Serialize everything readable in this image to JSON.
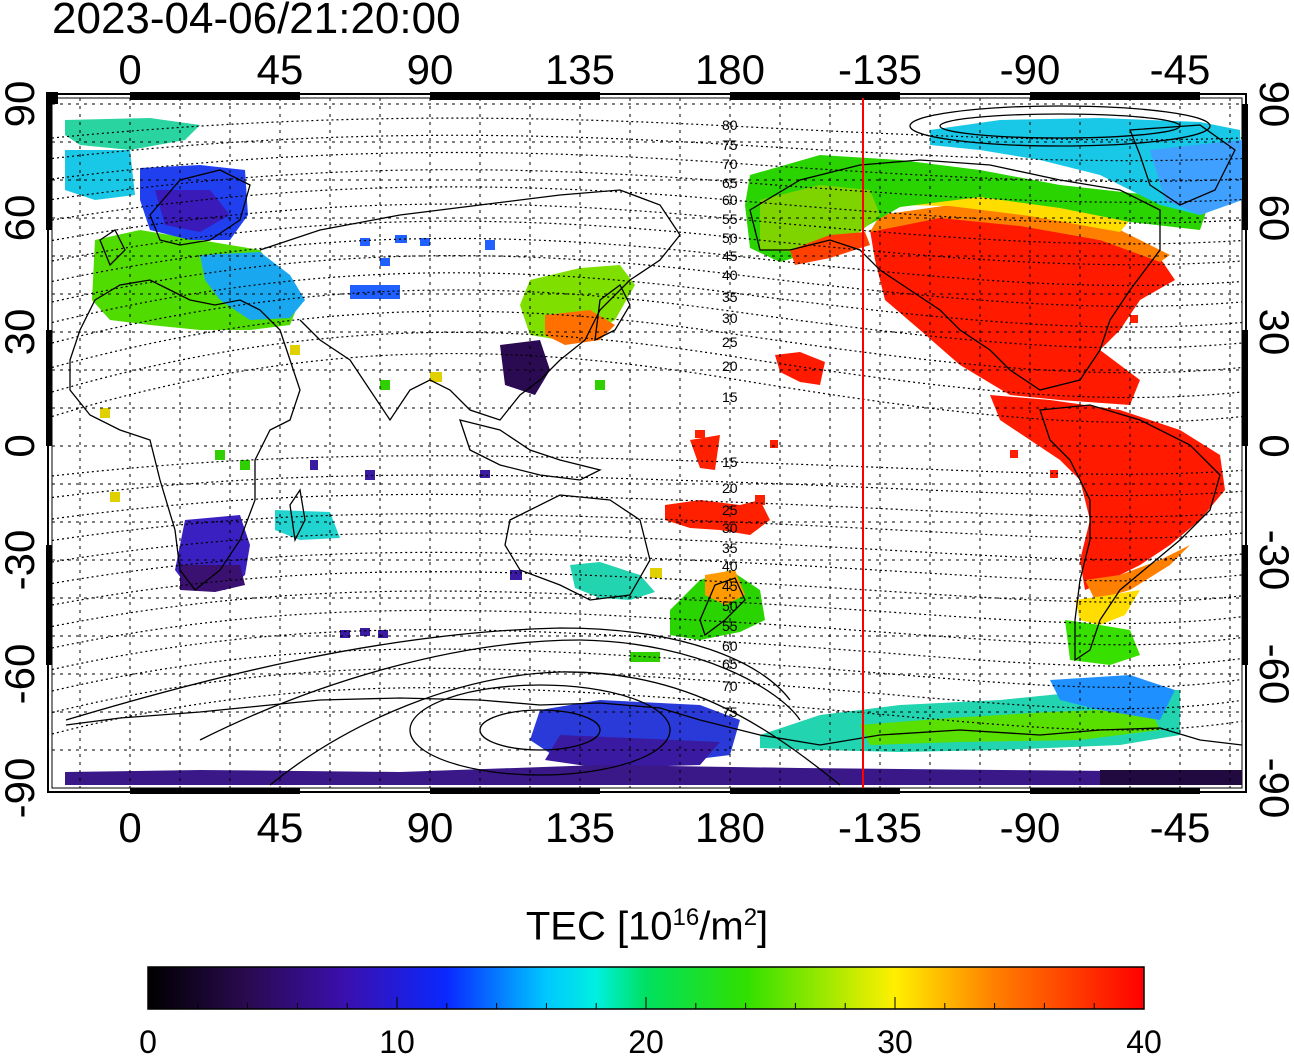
{
  "title": "2023-04-06/21:20:00",
  "map": {
    "lon_top_ticks": [
      "0",
      "45",
      "90",
      "135",
      "180",
      "-135",
      "-90",
      "-45"
    ],
    "lon_bottom_ticks": [
      "0",
      "45",
      "90",
      "135",
      "180",
      "-135",
      "-90",
      "-45"
    ],
    "lat_left_ticks": [
      "90",
      "60",
      "30",
      "0",
      "-30",
      "-60",
      "-90"
    ],
    "lat_right_ticks": [
      "90",
      "60",
      "30",
      "0",
      "-30",
      "-60",
      "-90"
    ],
    "contour_labels_north": [
      "80",
      "75",
      "70",
      "65",
      "60",
      "55",
      "50",
      "45",
      "40",
      "35",
      "30",
      "25",
      "20",
      "15"
    ],
    "contour_labels_south": [
      "15",
      "20",
      "25",
      "30",
      "35",
      "40",
      "45",
      "50",
      "55",
      "60",
      "65",
      "70",
      "75"
    ],
    "terminator_color": "#ff0000"
  },
  "colorbar": {
    "label_main": "TEC  [10",
    "label_exp1": "16",
    "label_mid": "/m",
    "label_exp2": "2",
    "label_end": "]",
    "ticks": [
      "0",
      "10",
      "20",
      "30",
      "40"
    ],
    "min": 0,
    "max": 40
  },
  "tec_regions": [
    {
      "name": "north-america",
      "value": 40
    },
    {
      "name": "south-america",
      "value": 40
    },
    {
      "name": "greenland",
      "value": 18
    },
    {
      "name": "alaska-canada",
      "value": 24
    },
    {
      "name": "europe",
      "value": 22
    },
    {
      "name": "scandinavia",
      "value": 10
    },
    {
      "name": "east-asia",
      "value": 26
    },
    {
      "name": "south-africa",
      "value": 8
    },
    {
      "name": "new-zealand",
      "value": 30
    },
    {
      "name": "pacific-islands",
      "value": 38
    },
    {
      "name": "antarctica-west",
      "value": 20
    },
    {
      "name": "antarctica-east",
      "value": 6
    }
  ]
}
